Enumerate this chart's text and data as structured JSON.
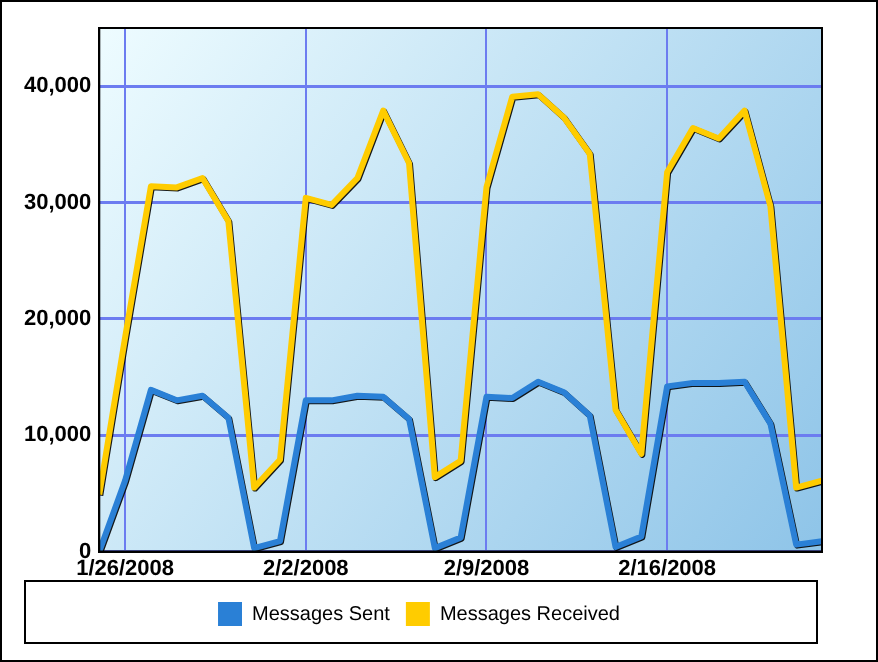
{
  "chart_data": {
    "type": "line",
    "x": [
      "2008-01-25",
      "2008-01-26",
      "2008-01-27",
      "2008-01-28",
      "2008-01-29",
      "2008-01-30",
      "2008-01-31",
      "2008-02-01",
      "2008-02-02",
      "2008-02-03",
      "2008-02-04",
      "2008-02-05",
      "2008-02-06",
      "2008-02-07",
      "2008-02-08",
      "2008-02-09",
      "2008-02-10",
      "2008-02-11",
      "2008-02-12",
      "2008-02-13",
      "2008-02-14",
      "2008-02-15",
      "2008-02-16",
      "2008-02-17",
      "2008-02-18",
      "2008-02-19",
      "2008-02-20",
      "2008-02-21",
      "2008-02-22"
    ],
    "series": [
      {
        "name": "Messages Sent",
        "color": "#2a80d6",
        "values": [
          0,
          6100,
          13900,
          13000,
          13400,
          11500,
          300,
          900,
          13000,
          13000,
          13400,
          13300,
          11400,
          300,
          1200,
          13300,
          13200,
          14600,
          13700,
          11700,
          400,
          1300,
          14200,
          14500,
          14500,
          14600,
          11000,
          600,
          900
        ]
      },
      {
        "name": "Messages Received",
        "color": "#ffcc00",
        "values": [
          4900,
          18400,
          31400,
          31300,
          32100,
          28400,
          5500,
          7900,
          30400,
          29800,
          32100,
          37900,
          33400,
          6400,
          7800,
          31300,
          39100,
          39300,
          37300,
          34200,
          12200,
          8400,
          32600,
          36400,
          35500,
          37900,
          29700,
          5500,
          6100
        ]
      }
    ],
    "xlim": [
      "2008-01-25",
      "2008-02-22"
    ],
    "xticks": [
      {
        "value": "2008-01-26",
        "label": "1/26/2008"
      },
      {
        "value": "2008-02-02",
        "label": "2/2/2008"
      },
      {
        "value": "2008-02-09",
        "label": "2/9/2008"
      },
      {
        "value": "2008-02-16",
        "label": "2/16/2008"
      }
    ],
    "ylim": [
      0,
      45000
    ],
    "yticks": [
      {
        "value": 0,
        "label": "0"
      },
      {
        "value": 10000,
        "label": "10,000"
      },
      {
        "value": 20000,
        "label": "20,000"
      },
      {
        "value": 30000,
        "label": "30,000"
      },
      {
        "value": 40000,
        "label": "40,000"
      }
    ],
    "grid": true,
    "legend": "bottom",
    "marker": "none",
    "line_style": "solid"
  }
}
